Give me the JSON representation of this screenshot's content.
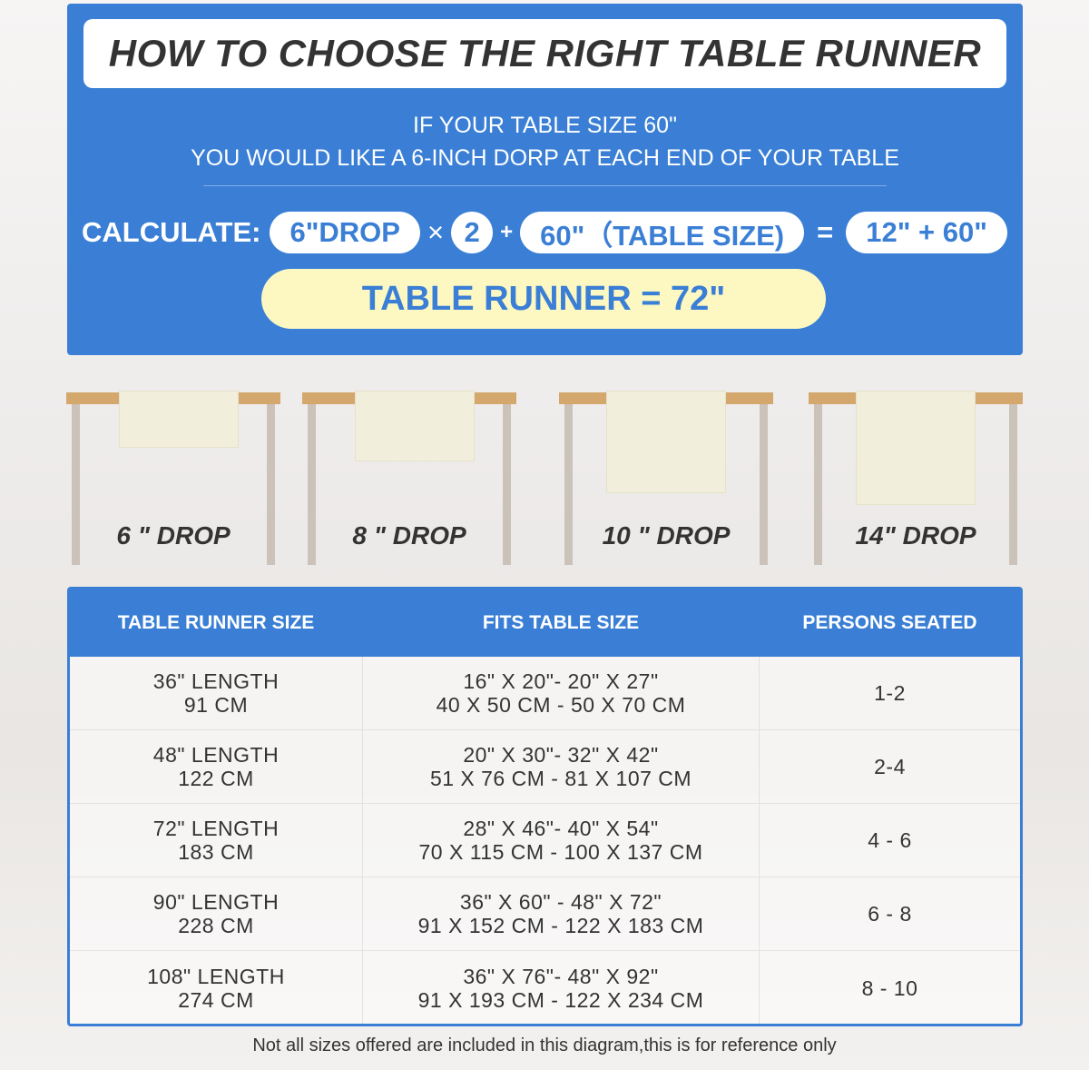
{
  "header": {
    "title": "HOW TO CHOOSE THE RIGHT TABLE RUNNER",
    "line1": "IF YOUR TABLE SIZE 60\"",
    "line2": "YOU WOULD LIKE A 6-INCH DORP AT EACH END OF YOUR TABLE"
  },
  "calc": {
    "label": "CALCULATE:",
    "drop": "6\"DROP",
    "times": "×",
    "two": "2",
    "plus": "+",
    "table": "60\"（TABLE SIZE)",
    "equals": "=",
    "sum": "12\" + 60\"",
    "result": "TABLE RUNNER = 72\""
  },
  "drops": [
    {
      "label": "6 \" DROP",
      "drop_in": 6
    },
    {
      "label": "8 \" DROP",
      "drop_in": 8
    },
    {
      "label": "10 \" DROP",
      "drop_in": 10
    },
    {
      "label": "14\" DROP",
      "drop_in": 14
    }
  ],
  "colors": {
    "blue": "#3a7fd5",
    "yellow": "#fdf8c2",
    "wood": "#d4a86c",
    "runner": "#f1eedc"
  },
  "table": {
    "headers": [
      "TABLE RUNNER SIZE",
      "FITS TABLE SIZE",
      "PERSONS SEATED"
    ],
    "rows": [
      {
        "size": [
          "36\" LENGTH",
          "91 CM"
        ],
        "fits": [
          "16\" X 20\"- 20\" X 27\"",
          "40 X 50 CM - 50 X 70 CM"
        ],
        "persons": "1-2"
      },
      {
        "size": [
          "48\" LENGTH",
          "122 CM"
        ],
        "fits": [
          "20\" X 30\"- 32\" X 42\"",
          "51 X 76 CM - 81 X 107 CM"
        ],
        "persons": "2-4"
      },
      {
        "size": [
          "72\" LENGTH",
          "183 CM"
        ],
        "fits": [
          "28\" X 46\"- 40\" X 54\"",
          "70 X 115 CM - 100 X 137 CM"
        ],
        "persons": "4 - 6"
      },
      {
        "size": [
          "90\" LENGTH",
          "228 CM"
        ],
        "fits": [
          "36\" X 60\" - 48\" X 72\"",
          "91 X 152 CM - 122 X 183 CM"
        ],
        "persons": "6 - 8"
      },
      {
        "size": [
          "108\" LENGTH",
          "274 CM"
        ],
        "fits": [
          "36\" X 76\"- 48\" X 92\"",
          "91 X 193 CM - 122 X 234 CM"
        ],
        "persons": "8 - 10"
      }
    ]
  },
  "footnote": "Not all sizes offered are included in this diagram,this is for reference only"
}
